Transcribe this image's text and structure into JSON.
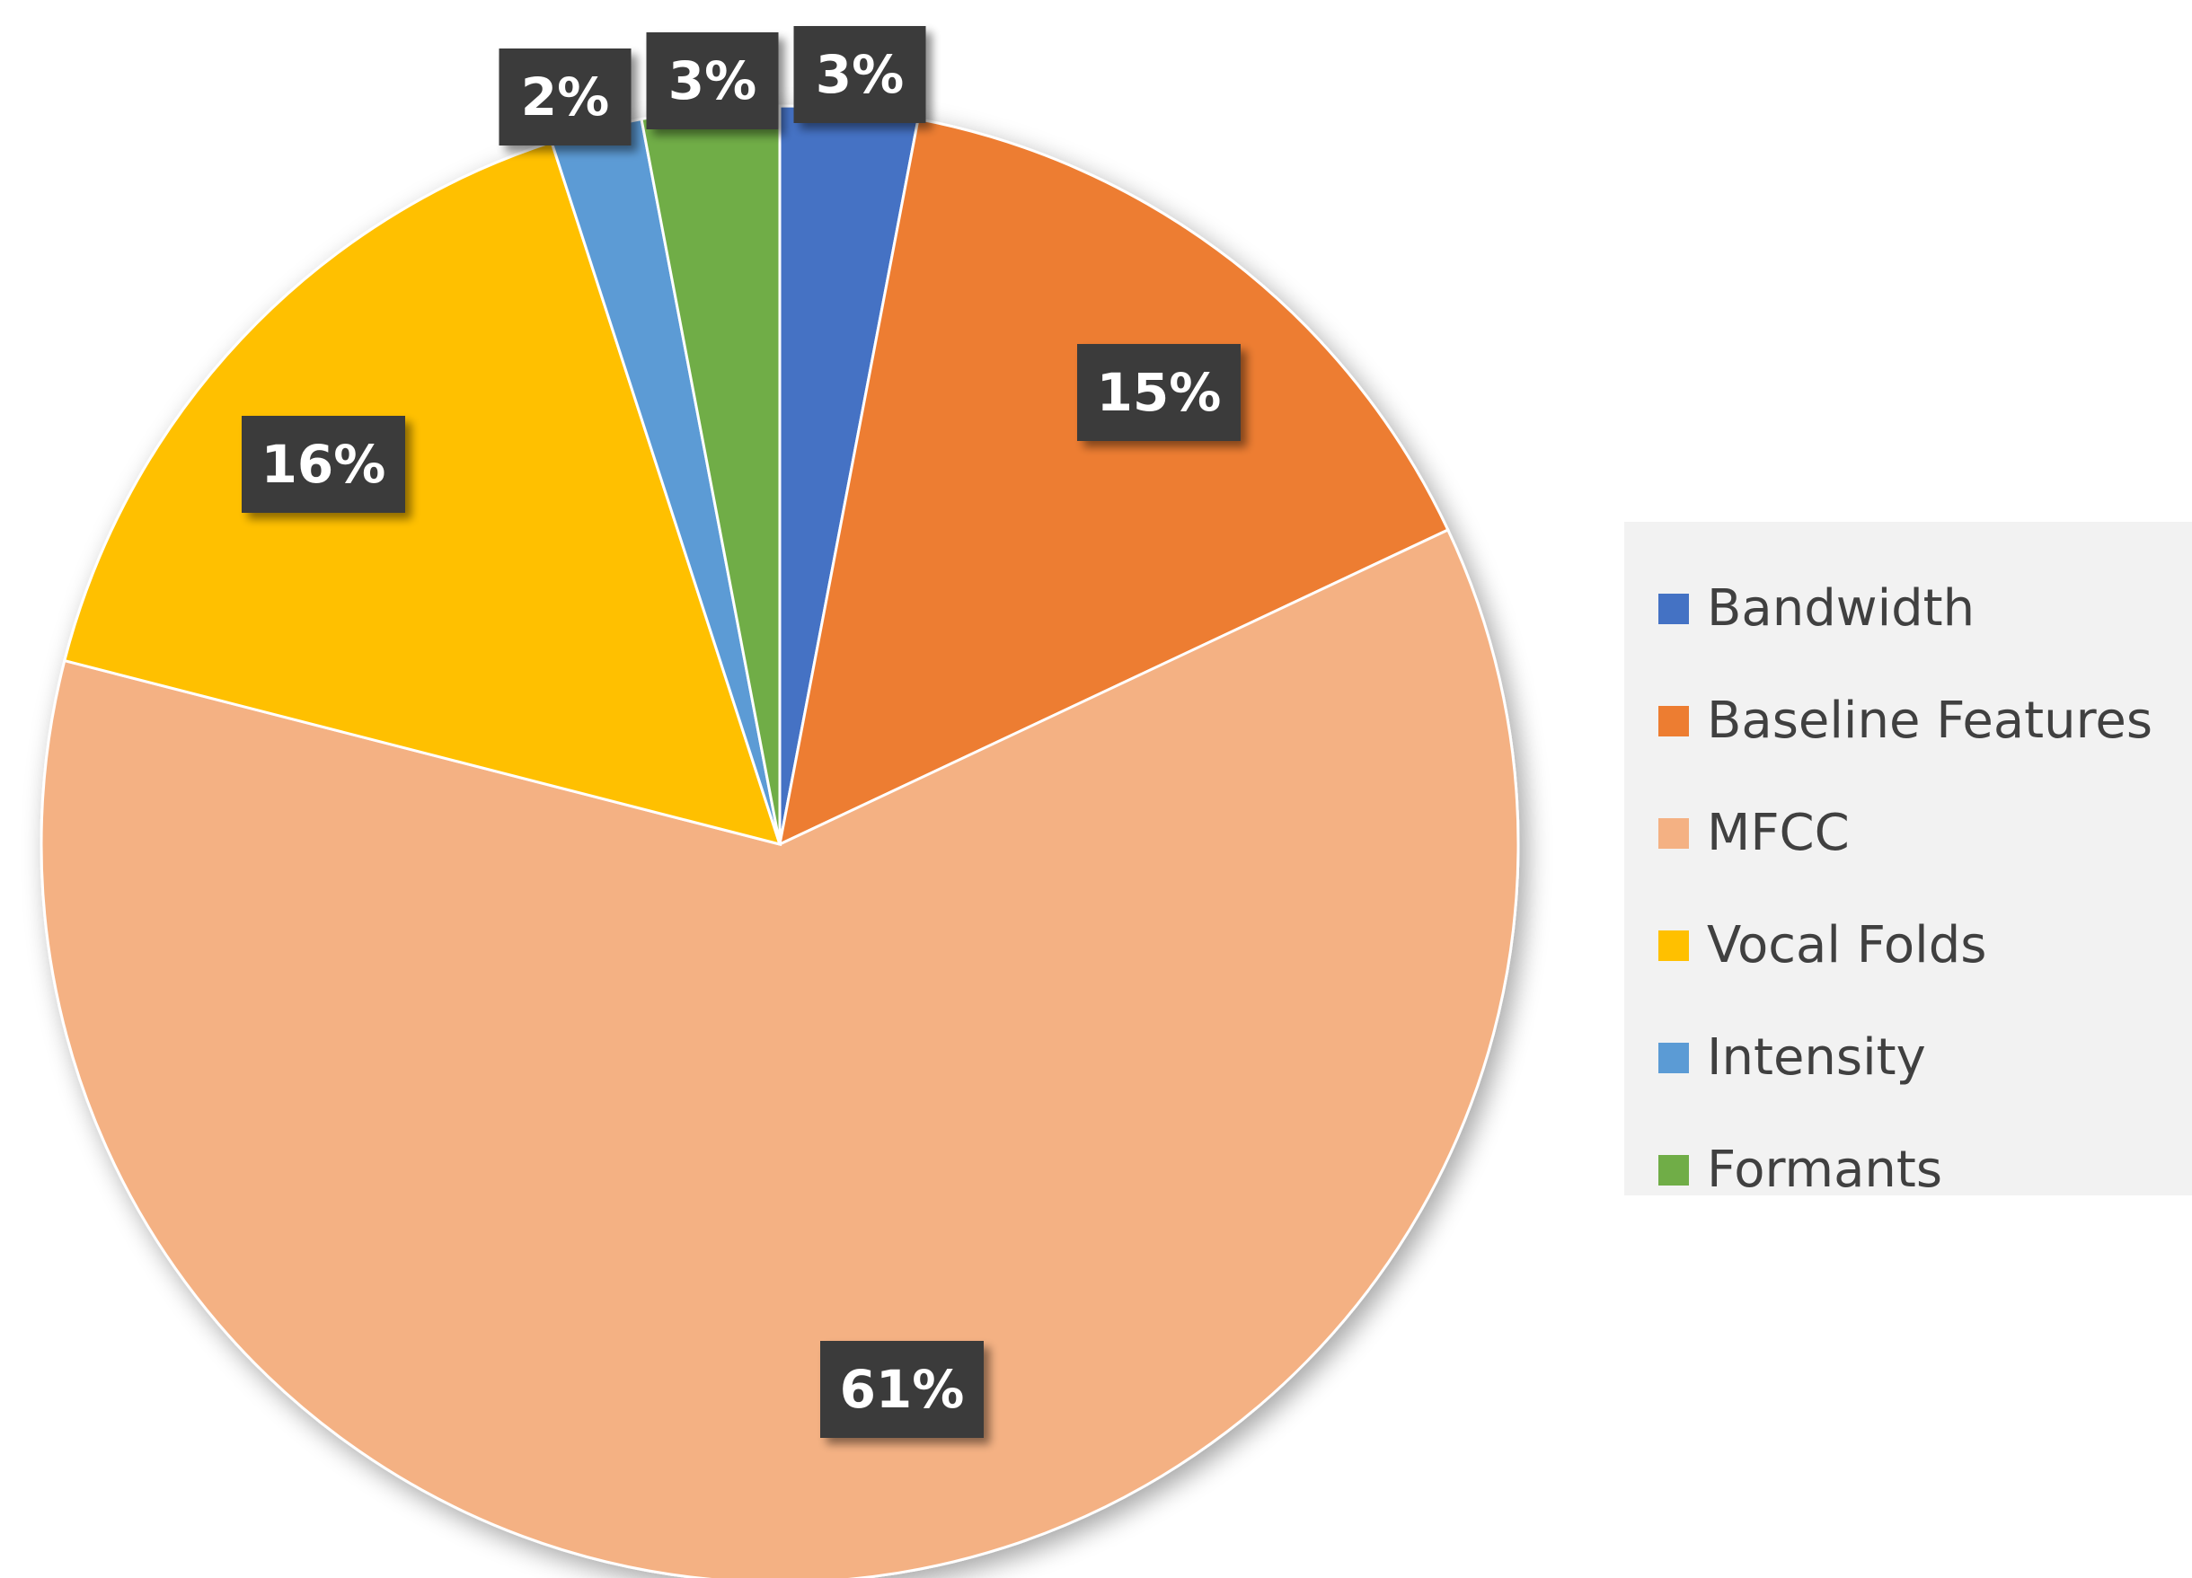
{
  "chart_data": {
    "type": "pie",
    "title": "",
    "slices": [
      {
        "name": "Bandwidth",
        "value": 3,
        "label": "3%",
        "color": "#4472C4"
      },
      {
        "name": "Baseline Features",
        "value": 15,
        "label": "15%",
        "color": "#ED7D31"
      },
      {
        "name": "MFCC",
        "value": 61,
        "label": "61%",
        "color": "#F4B183"
      },
      {
        "name": "Vocal Folds",
        "value": 16,
        "label": "16%",
        "color": "#FFC000"
      },
      {
        "name": "Intensity",
        "value": 2,
        "label": "2%",
        "color": "#5B9BD5"
      },
      {
        "name": "Formants",
        "value": 3,
        "label": "3%",
        "color": "#70AD47"
      }
    ],
    "start_angle": "12 o'clock",
    "direction": "clockwise",
    "legend_position": "right",
    "data_label_style": {
      "background": "#3A3A3A",
      "text_color": "#FFFFFF"
    }
  }
}
